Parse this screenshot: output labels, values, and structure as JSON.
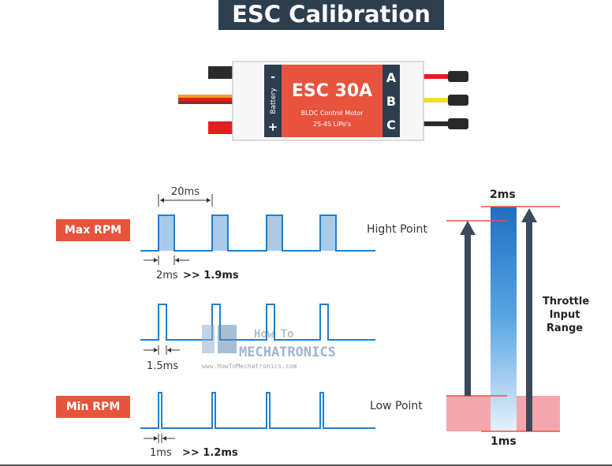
{
  "title": "ESC Calibration",
  "esc": {
    "model": "ESC 30A",
    "subtitle1": "BLDC Control Motor",
    "subtitle2": "2S-4S LiPo's",
    "battery_label": "Battery",
    "minus": "-",
    "plus": "+",
    "phase_a": "A",
    "phase_b": "B",
    "phase_c": "C"
  },
  "signals": {
    "period_label": "20ms",
    "max_rpm_label": "Max RPM",
    "min_rpm_label": "Min RPM",
    "max_pulse": "2ms",
    "max_pulse_alt": ">> 1.9ms",
    "mid_pulse": "1.5ms",
    "min_pulse": "1ms",
    "min_pulse_alt": ">> 1.2ms",
    "high_point": "Hight Point",
    "low_point": "Low Point"
  },
  "range": {
    "top": "2ms",
    "bottom": "1ms",
    "label_line1": "Throttle",
    "label_line2": "Input",
    "label_line3": "Range"
  },
  "watermark": {
    "line1": "How To",
    "line2": "MECHATRONICS",
    "url": "www.HowToMechatronics.com"
  },
  "colors": {
    "title_bg": "#2d3e4f",
    "esc_red": "#e8533e",
    "signal_blue": "#1f7fd0",
    "tag_red": "#e8533e",
    "low_band": "#f4a6ad",
    "arrow_dark": "#3a4a5a"
  }
}
